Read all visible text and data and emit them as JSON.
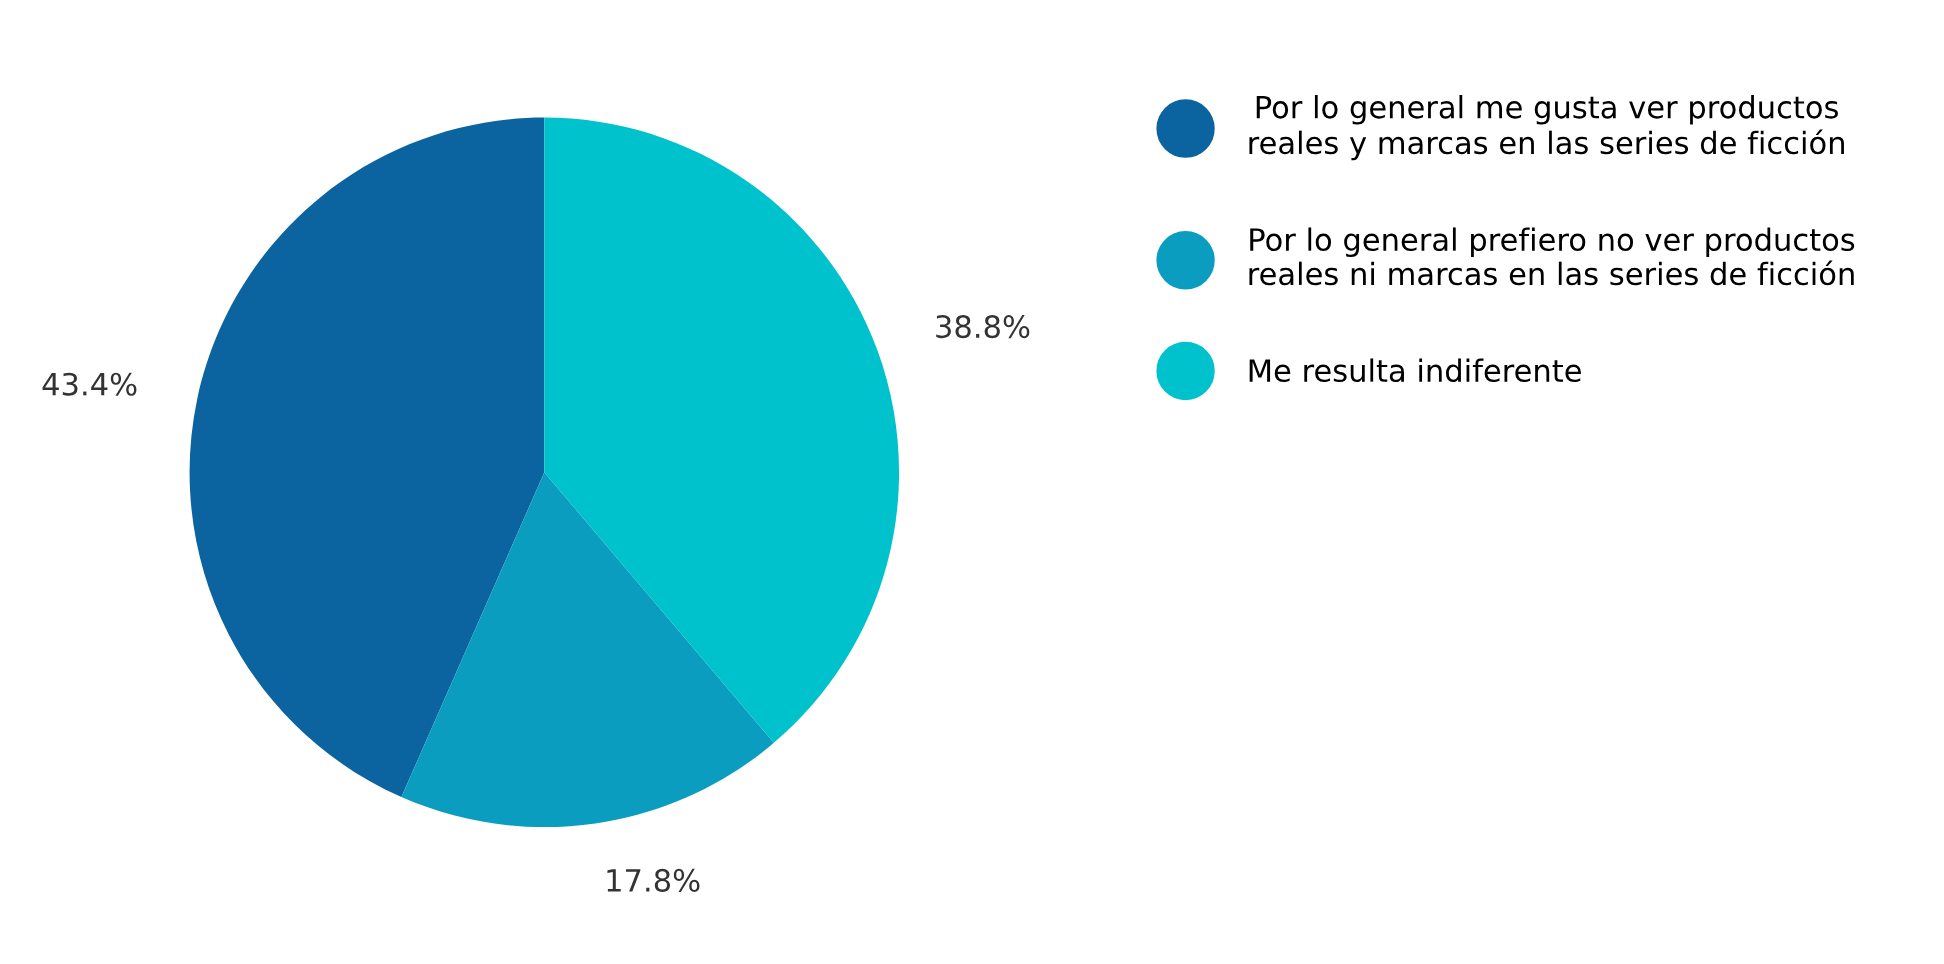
{
  "chart_data": {
    "type": "pie",
    "categories": [
      "Por lo general me gusta ver productos reales y marcas en las series de ficción",
      "Por lo general prefiero no ver productos reales ni marcas en las series de ficción",
      "Me resulta indiferente"
    ],
    "values": [
      43.4,
      17.8,
      38.8
    ],
    "value_labels": [
      "43.4%",
      "17.8%",
      "38.8%"
    ],
    "colors": [
      "#0b64a0",
      "#0a9dbf",
      "#00c2cc"
    ],
    "legend": "right"
  }
}
